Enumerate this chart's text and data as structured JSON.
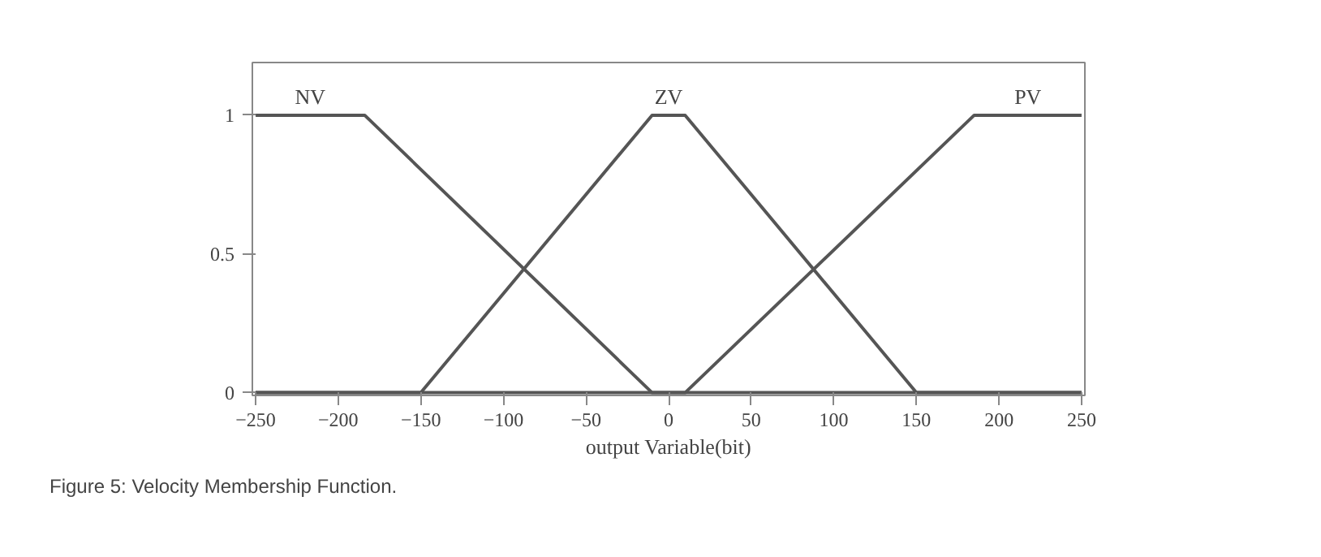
{
  "chart_data": {
    "type": "line",
    "xlabel": "output Variable(bit)",
    "annotations": [
      "Figure 5: Velocity Membership Function."
    ],
    "xlim": [
      -252,
      252
    ],
    "ylim": [
      -0.01,
      1.19
    ],
    "xticks": [
      -250,
      -200,
      -150,
      -100,
      -50,
      0,
      50,
      100,
      150,
      200,
      250
    ],
    "yticks": [
      0,
      0.5,
      1
    ],
    "grid": false,
    "legend": false,
    "marker": "none",
    "line_style": "solid",
    "series": [
      {
        "name": "NV",
        "color": "#555555",
        "x": [
          -250,
          -184,
          -10,
          250
        ],
        "values": [
          1,
          1,
          0,
          0
        ]
      },
      {
        "name": "ZV",
        "color": "#555555",
        "x": [
          -250,
          -150,
          -10,
          10,
          150,
          250
        ],
        "values": [
          0,
          0,
          1,
          1,
          0,
          0
        ]
      },
      {
        "name": "PV",
        "color": "#555555",
        "x": [
          -250,
          10,
          185,
          250
        ],
        "values": [
          0,
          0,
          1,
          1
        ]
      }
    ]
  }
}
